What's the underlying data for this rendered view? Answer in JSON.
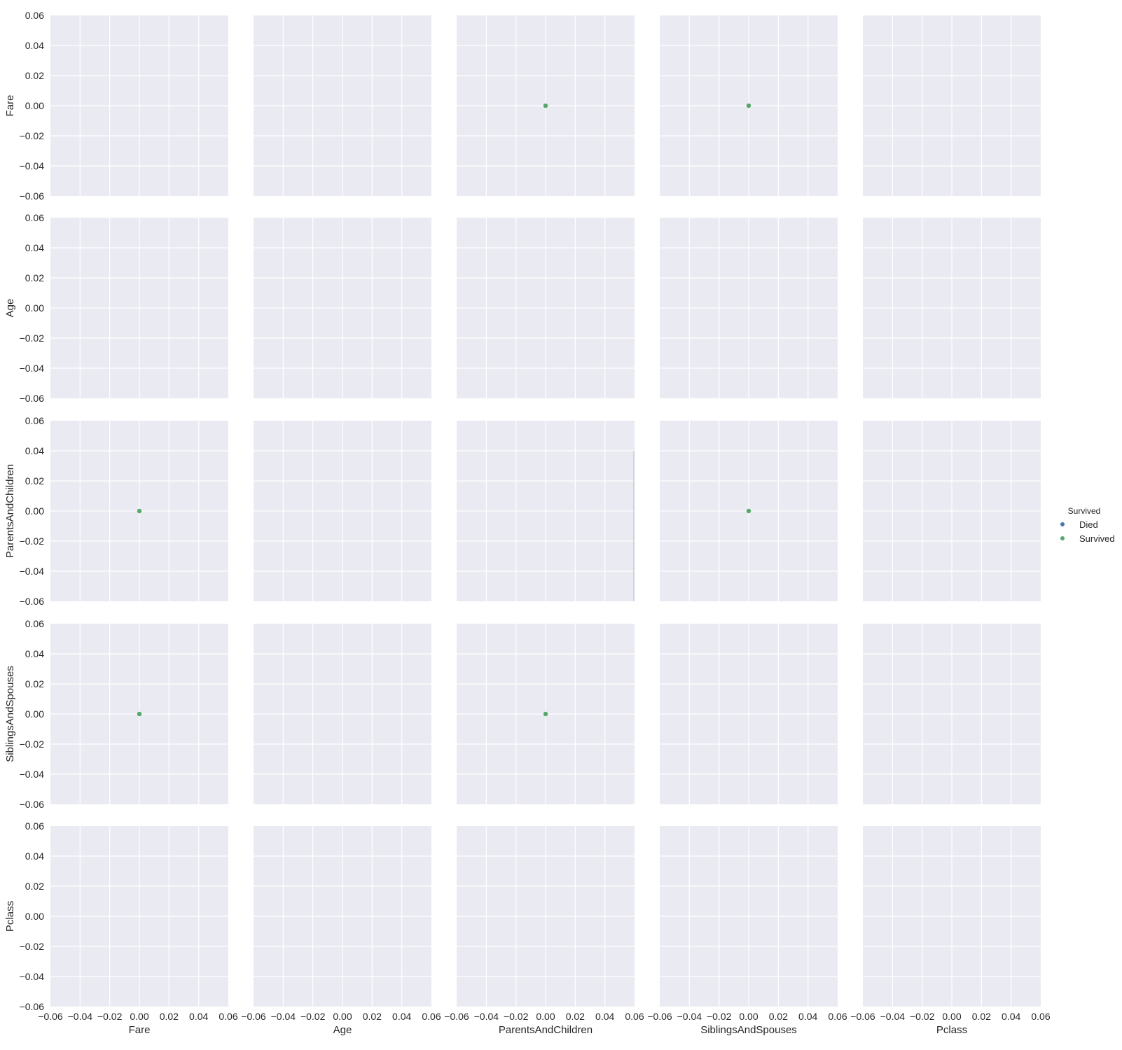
{
  "chart_data": {
    "type": "scatter",
    "variables": [
      "Fare",
      "Age",
      "ParentsAndChildren",
      "SiblingsAndSpouses",
      "Pclass"
    ],
    "xlim": [
      -0.06,
      0.06
    ],
    "ylim": [
      -0.06,
      0.06
    ],
    "ticks": [
      -0.06,
      -0.04,
      -0.02,
      0.0,
      0.02,
      0.04,
      0.06
    ],
    "tick_labels": [
      "−0.06",
      "−0.04",
      "−0.02",
      "0.00",
      "0.02",
      "0.04",
      "0.06"
    ],
    "grid": true,
    "background_color": "#eaeaf2",
    "grid_color": "#ffffff",
    "legend": {
      "title": "Survived",
      "placement": "right",
      "entries": [
        {
          "label": "Died",
          "color": "#4c72b0"
        },
        {
          "label": "Survived",
          "color": "#55a868"
        }
      ]
    },
    "points": [
      {
        "row": 0,
        "col": 2,
        "x": 0.0,
        "y": 0.0,
        "hue": "Survived"
      },
      {
        "row": 0,
        "col": 3,
        "x": 0.0,
        "y": 0.0,
        "hue": "Survived"
      },
      {
        "row": 2,
        "col": 0,
        "x": 0.0,
        "y": 0.0,
        "hue": "Survived"
      },
      {
        "row": 2,
        "col": 3,
        "x": 0.0,
        "y": 0.0,
        "hue": "Survived"
      },
      {
        "row": 3,
        "col": 0,
        "x": 0.0,
        "y": 0.0,
        "hue": "Survived"
      },
      {
        "row": 3,
        "col": 2,
        "x": 0.0,
        "y": 0.0,
        "hue": "Survived"
      }
    ],
    "diagonal_marks": [
      {
        "row": 2,
        "col": 2,
        "x": 0.06,
        "y_range": [
          -0.06,
          0.04
        ],
        "color": "#b8b8c8"
      }
    ]
  }
}
